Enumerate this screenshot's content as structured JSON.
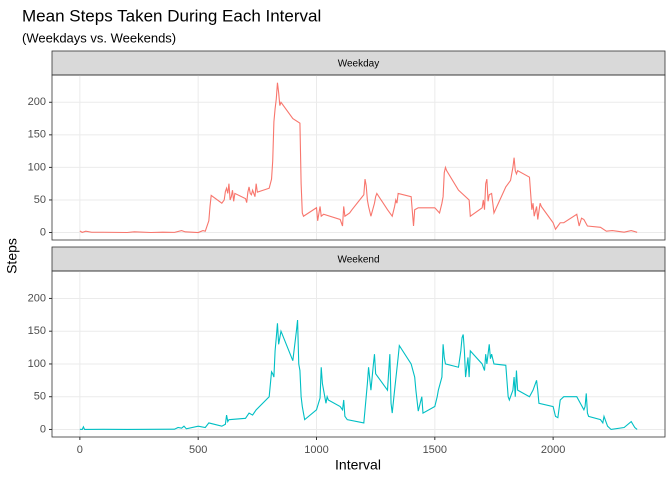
{
  "chart_data": {
    "type": "line",
    "title": "Mean Steps Taken During Each Interval",
    "subtitle": "(Weekdays vs. Weekends)",
    "x_label": "Interval",
    "y_label": "Steps",
    "xlim": [
      -117.75,
      2472.75
    ],
    "xticks": [
      0,
      500,
      1000,
      1500,
      2000
    ],
    "ylim": [
      -11.5,
      241.9
    ],
    "yticks": [
      0,
      50,
      100,
      150,
      200
    ],
    "grid": true,
    "facets": [
      {
        "name": "Weekday",
        "color": "#F8766D",
        "x": [
          0,
          10,
          25,
          50,
          100,
          150,
          200,
          230,
          300,
          350,
          400,
          430,
          445,
          500,
          520,
          530,
          545,
          550,
          555,
          600,
          610,
          615,
          620,
          625,
          630,
          635,
          640,
          645,
          650,
          655,
          700,
          705,
          710,
          715,
          720,
          725,
          730,
          740,
          745,
          750,
          800,
          810,
          815,
          820,
          825,
          830,
          835,
          840,
          845,
          850,
          900,
          930,
          935,
          940,
          945,
          1000,
          1005,
          1015,
          1020,
          1030,
          1100,
          1110,
          1115,
          1120,
          1140,
          1150,
          1200,
          1205,
          1210,
          1215,
          1220,
          1230,
          1245,
          1250,
          1255,
          1300,
          1310,
          1320,
          1330,
          1335,
          1340,
          1345,
          1400,
          1410,
          1415,
          1430,
          1500,
          1520,
          1530,
          1535,
          1540,
          1545,
          1550,
          1600,
          1645,
          1650,
          1700,
          1705,
          1710,
          1715,
          1720,
          1725,
          1730,
          1740,
          1745,
          1750,
          1800,
          1810,
          1820,
          1830,
          1835,
          1840,
          1845,
          1850,
          1900,
          1910,
          1915,
          1920,
          1930,
          1935,
          1945,
          1950,
          2000,
          2010,
          2020,
          2030,
          2045,
          2100,
          2110,
          2120,
          2130,
          2145,
          2200,
          2225,
          2250,
          2300,
          2330,
          2355
        ],
        "values": [
          2.3,
          0.2,
          2,
          0.4,
          0.4,
          0.2,
          0,
          1,
          0,
          0.5,
          0.2,
          3,
          1,
          0,
          3,
          2,
          18,
          40,
          57,
          45,
          50,
          63,
          68,
          60,
          75,
          50,
          55,
          65,
          48,
          60,
          52,
          46,
          62,
          70,
          60,
          58,
          65,
          55,
          75,
          62,
          68,
          82,
          110,
          170,
          190,
          205,
          230,
          215,
          195,
          200,
          175,
          168,
          75,
          30,
          25,
          38,
          18,
          40,
          25,
          28,
          20,
          10,
          40,
          25,
          30,
          35,
          58,
          82,
          72,
          50,
          40,
          25,
          45,
          55,
          60,
          35,
          30,
          25,
          40,
          50,
          45,
          60,
          55,
          10,
          35,
          38,
          38,
          30,
          45,
          55,
          92,
          100,
          95,
          65,
          50,
          25,
          38,
          50,
          35,
          75,
          82,
          48,
          58,
          60,
          45,
          30,
          70,
          75,
          80,
          100,
          115,
          95,
          90,
          95,
          85,
          35,
          45,
          25,
          40,
          20,
          45,
          40,
          15,
          5,
          10,
          15,
          15,
          28,
          10,
          22,
          20,
          10,
          8,
          2,
          3,
          0.5,
          3,
          0.3
        ]
      },
      {
        "name": "Weekend",
        "color": "#00BFC4",
        "x": [
          0,
          10,
          15,
          20,
          100,
          200,
          300,
          400,
          415,
          430,
          440,
          450,
          500,
          530,
          545,
          600,
          615,
          620,
          625,
          630,
          700,
          715,
          730,
          745,
          800,
          810,
          815,
          820,
          825,
          830,
          835,
          840,
          845,
          850,
          900,
          915,
          920,
          925,
          930,
          935,
          940,
          945,
          950,
          1000,
          1015,
          1020,
          1025,
          1030,
          1040,
          1045,
          1050,
          1100,
          1110,
          1115,
          1120,
          1130,
          1200,
          1205,
          1210,
          1215,
          1220,
          1230,
          1240,
          1245,
          1250,
          1300,
          1310,
          1315,
          1320,
          1330,
          1345,
          1350,
          1400,
          1415,
          1420,
          1430,
          1445,
          1450,
          1500,
          1510,
          1515,
          1530,
          1535,
          1540,
          1545,
          1600,
          1610,
          1615,
          1620,
          1625,
          1630,
          1640,
          1645,
          1650,
          1700,
          1710,
          1715,
          1720,
          1730,
          1735,
          1740,
          1750,
          1800,
          1810,
          1815,
          1830,
          1835,
          1840,
          1845,
          1850,
          1900,
          1915,
          1930,
          1935,
          1940,
          2000,
          2010,
          2020,
          2030,
          2045,
          2100,
          2115,
          2130,
          2135,
          2140,
          2145,
          2150,
          2200,
          2210,
          2215,
          2220,
          2230,
          2245,
          2300,
          2330,
          2345,
          2355
        ],
        "values": [
          0.2,
          0,
          4,
          0,
          0.2,
          0,
          0.3,
          0.4,
          3,
          2,
          5,
          1,
          5,
          3,
          10,
          5,
          8,
          22,
          12,
          15,
          17,
          25,
          22,
          30,
          50,
          88,
          85,
          80,
          120,
          140,
          162,
          130,
          140,
          150,
          105,
          150,
          167,
          100,
          90,
          50,
          35,
          25,
          15,
          30,
          48,
          95,
          70,
          60,
          40,
          50,
          45,
          35,
          30,
          45,
          20,
          15,
          10,
          30,
          50,
          70,
          95,
          60,
          98,
          115,
          85,
          60,
          115,
          40,
          25,
          60,
          110,
          128,
          100,
          80,
          60,
          28,
          50,
          25,
          35,
          50,
          60,
          80,
          130,
          110,
          100,
          95,
          120,
          140,
          145,
          120,
          80,
          110,
          80,
          120,
          100,
          90,
          115,
          100,
          130,
          108,
          115,
          100,
          98,
          50,
          45,
          60,
          80,
          50,
          90,
          60,
          50,
          60,
          75,
          60,
          40,
          35,
          20,
          18,
          45,
          50,
          50,
          40,
          30,
          35,
          55,
          25,
          20,
          15,
          10,
          20,
          15,
          5,
          0,
          3,
          12,
          3,
          0
        ]
      }
    ]
  }
}
